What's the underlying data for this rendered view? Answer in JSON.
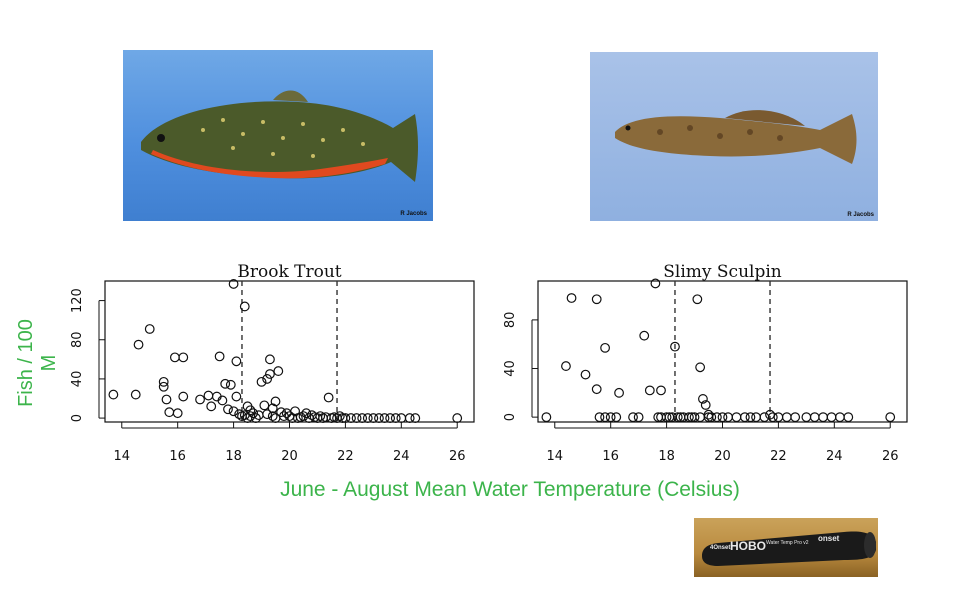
{
  "photos": {
    "trout_credit": "R Jacobs",
    "sculpin_credit": "R Jacobs",
    "logger_brand": "HOBO",
    "logger_left": "4Onset",
    "logger_right": "onset",
    "logger_small": "Water Temp Pro v2"
  },
  "labels": {
    "ylabel": "Fish / 100 M",
    "xlabel": "June - August Mean Water Temperature (Celsius)"
  },
  "colors": {
    "label_green": "#3cb44b",
    "axis": "#111111"
  },
  "chart_data": [
    {
      "type": "scatter",
      "title": "Brook Trout",
      "xlabel": "",
      "ylabel": "",
      "xlim": [
        13.4,
        26.6
      ],
      "ylim": [
        -4,
        140
      ],
      "xticks": [
        14,
        16,
        18,
        20,
        22,
        24,
        26
      ],
      "yticks": [
        0,
        40,
        80,
        120
      ],
      "vlines": [
        18.3,
        21.7
      ],
      "grid": false,
      "x": [
        13.7,
        14.5,
        14.6,
        15.0,
        15.5,
        15.5,
        15.6,
        15.7,
        15.9,
        16.0,
        16.2,
        16.2,
        16.8,
        17.1,
        17.2,
        17.4,
        17.5,
        17.6,
        17.7,
        17.8,
        17.9,
        18.0,
        18.0,
        18.1,
        18.1,
        18.2,
        18.3,
        18.4,
        18.4,
        18.5,
        18.5,
        18.6,
        18.6,
        18.7,
        18.8,
        18.9,
        19.0,
        19.1,
        19.2,
        19.2,
        19.3,
        19.3,
        19.4,
        19.4,
        19.5,
        19.5,
        19.6,
        19.7,
        19.8,
        19.9,
        20.0,
        20.1,
        20.2,
        20.3,
        20.4,
        20.5,
        20.6,
        20.7,
        20.8,
        20.9,
        21.0,
        21.1,
        21.2,
        21.3,
        21.4,
        21.5,
        21.6,
        21.7,
        21.8,
        21.9,
        22.0,
        22.2,
        22.4,
        22.6,
        22.8,
        23.0,
        23.2,
        23.4,
        23.6,
        23.8,
        24.0,
        24.3,
        24.5,
        26.0
      ],
      "y": [
        24,
        24,
        75,
        91,
        37,
        32,
        19,
        6,
        62,
        5,
        62,
        22,
        19,
        23,
        12,
        22,
        63,
        18,
        35,
        9,
        34,
        7,
        137,
        58,
        22,
        4,
        2,
        114,
        3,
        0,
        12,
        8,
        2,
        5,
        0,
        3,
        37,
        13,
        40,
        4,
        60,
        45,
        2,
        10,
        0,
        17,
        48,
        6,
        2,
        5,
        2,
        0,
        7,
        0,
        1,
        2,
        5,
        0,
        3,
        1,
        0,
        2,
        0,
        1,
        21,
        0,
        1,
        0,
        2,
        0,
        0,
        0,
        0,
        0,
        0,
        0,
        0,
        0,
        0,
        0,
        0,
        0,
        0,
        0
      ]
    },
    {
      "type": "scatter",
      "title": "Slimy Sculpin",
      "xlabel": "",
      "ylabel": "",
      "xlim": [
        13.4,
        26.6
      ],
      "ylim": [
        -4,
        112
      ],
      "xticks": [
        14,
        16,
        18,
        20,
        22,
        24,
        26
      ],
      "yticks": [
        0,
        40,
        80
      ],
      "vlines": [
        18.3,
        21.7
      ],
      "grid": false,
      "x": [
        13.7,
        14.4,
        14.6,
        15.1,
        15.5,
        15.5,
        15.6,
        15.8,
        15.8,
        16.0,
        16.2,
        16.3,
        16.8,
        17.0,
        17.2,
        17.4,
        17.6,
        17.7,
        17.8,
        17.8,
        18.0,
        18.1,
        18.2,
        18.3,
        18.4,
        18.5,
        18.6,
        18.8,
        18.9,
        19.0,
        19.1,
        19.2,
        19.2,
        19.3,
        19.4,
        19.5,
        19.5,
        19.6,
        19.8,
        20.0,
        20.2,
        20.5,
        20.8,
        21.0,
        21.2,
        21.5,
        21.7,
        21.8,
        22.0,
        22.3,
        22.6,
        23.0,
        23.3,
        23.6,
        23.9,
        24.2,
        24.5,
        26.0
      ],
      "y": [
        0,
        42,
        98,
        35,
        23,
        97,
        0,
        0,
        57,
        0,
        0,
        20,
        0,
        0,
        67,
        22,
        110,
        0,
        0,
        22,
        0,
        0,
        0,
        58,
        0,
        0,
        0,
        0,
        0,
        0,
        97,
        0,
        41,
        15,
        10,
        0,
        2,
        0,
        0,
        0,
        0,
        0,
        0,
        0,
        0,
        0,
        2,
        0,
        0,
        0,
        0,
        0,
        0,
        0,
        0,
        0,
        0,
        0
      ]
    }
  ]
}
